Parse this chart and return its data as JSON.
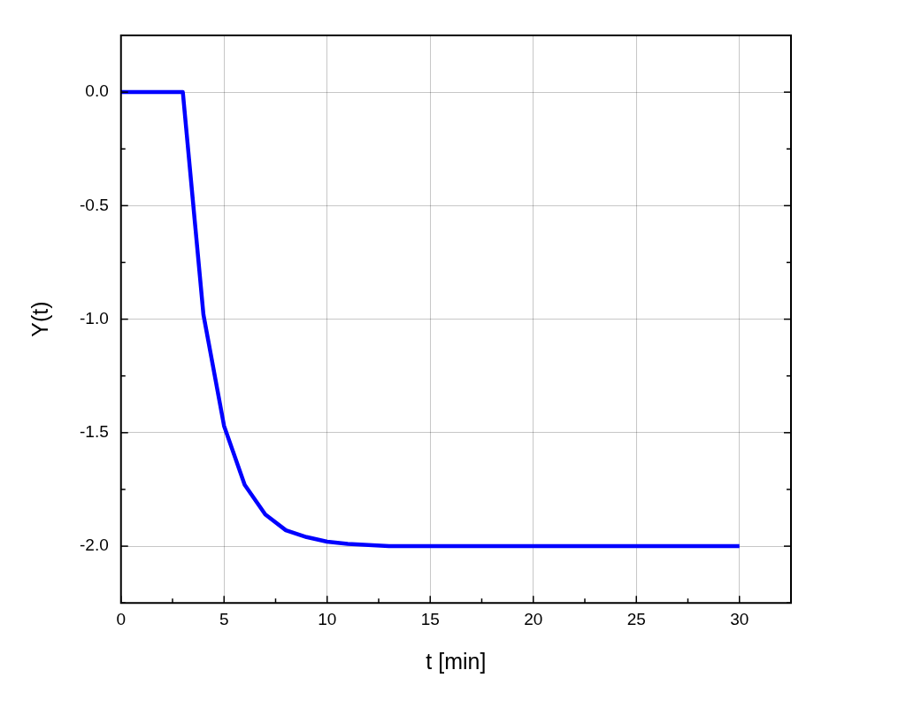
{
  "chart_data": {
    "type": "line",
    "xlabel": "t [min]",
    "ylabel": "Y(t)",
    "x": [
      0,
      1,
      2,
      3,
      4,
      5,
      6,
      7,
      8,
      9,
      10,
      11,
      12,
      13,
      14,
      15,
      20,
      25,
      30
    ],
    "series": [
      {
        "color": "#0000ff",
        "values": [
          0,
          0,
          0,
          0,
          -0.98,
          -1.47,
          -1.73,
          -1.86,
          -1.93,
          -1.96,
          -1.98,
          -1.99,
          -1.995,
          -2.0,
          -2.0,
          -2.0,
          -2.0,
          -2.0,
          -2.0
        ]
      }
    ],
    "xlim": [
      0,
      32.5
    ],
    "ylim": [
      -2.25,
      0.25
    ],
    "xticks": [
      0,
      {
        "value": 2.5,
        "label": null
      },
      5,
      {
        "value": 7.5,
        "label": null
      },
      10,
      {
        "value": 12.5,
        "label": null
      },
      15,
      {
        "value": 17.5,
        "label": null
      },
      20,
      {
        "value": 22.5,
        "label": null
      },
      25,
      {
        "value": 27.5,
        "label": null
      },
      30,
      {
        "value": 32.5,
        "label": null
      }
    ],
    "yticks": [
      {
        "value": -2.25,
        "label": null
      },
      {
        "value": -2,
        "label": "-2.0"
      },
      {
        "value": -1.75,
        "label": null
      },
      {
        "value": -1.5,
        "label": "-1.5"
      },
      {
        "value": -1.25,
        "label": null
      },
      {
        "value": -1,
        "label": "-1.0"
      },
      {
        "value": -0.75,
        "label": null
      },
      {
        "value": -0.5,
        "label": "-0.5"
      },
      {
        "value": -0.25,
        "label": null
      },
      {
        "value": 0,
        "label": "0.0"
      },
      {
        "value": 0.25,
        "label": null
      }
    ],
    "grid": true,
    "marker": "none",
    "line_style": "solid",
    "legend": false
  }
}
